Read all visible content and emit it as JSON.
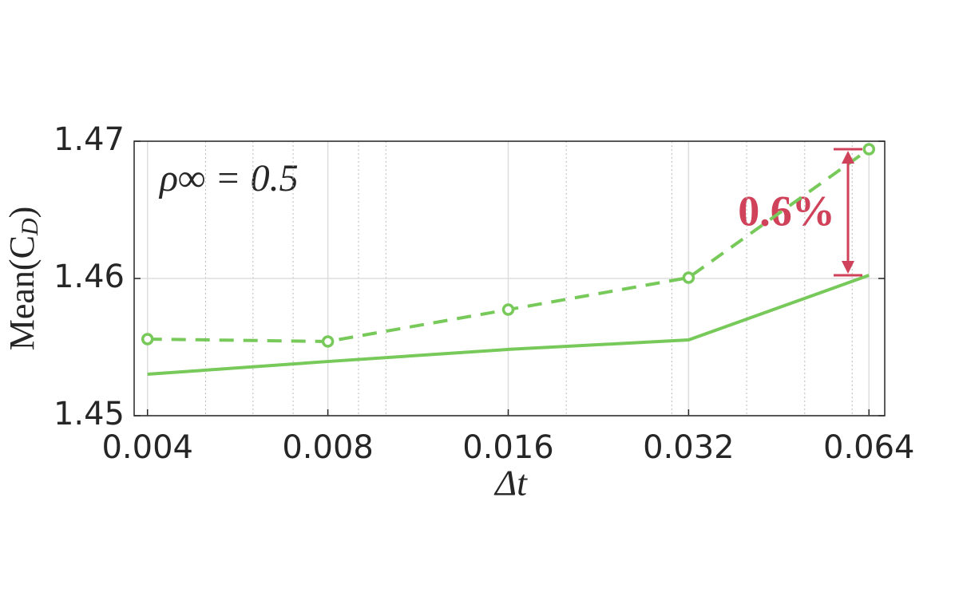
{
  "chart_data": {
    "type": "line",
    "xlabel": "Δt",
    "ylabel": [
      "Mean(C",
      "D",
      ")"
    ],
    "annotations": [
      "ρ∞ = 0.5",
      "0.6%"
    ],
    "annotation_color": "#d0415a",
    "x": [
      0.004,
      0.008,
      0.016,
      0.032,
      0.064
    ],
    "xscale": "log",
    "xlim": [
      0.0038,
      0.068
    ],
    "xticks": [
      0.004,
      0.008,
      0.016,
      0.032,
      0.064
    ],
    "ylim": [
      1.45,
      1.47
    ],
    "yticks": [
      1.45,
      1.46,
      1.47
    ],
    "grid": true,
    "minor_grid": true,
    "series": [
      {
        "color": "#77c95a",
        "dash": false,
        "markers": false,
        "values": [
          1.45302,
          1.45395,
          1.45483,
          1.45552,
          1.46023
        ]
      },
      {
        "color": "#77c95a",
        "dash": true,
        "markers": true,
        "values": [
          1.45558,
          1.45541,
          1.45773,
          1.46006,
          1.46942
        ]
      }
    ]
  }
}
